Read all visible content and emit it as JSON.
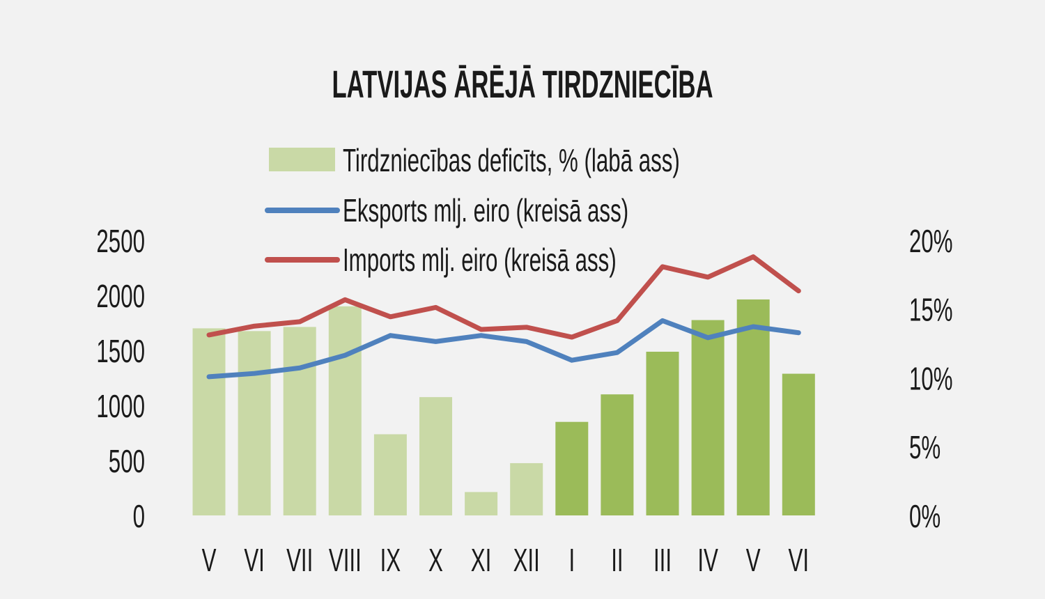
{
  "chart_data": {
    "type": "bar+line",
    "title": "LATVIJAS ĀRĒJĀ TIRDZNIECĪBA",
    "categories": [
      "V",
      "VI",
      "VII",
      "VIII",
      "IX",
      "X",
      "XI",
      "XII",
      "I",
      "II",
      "III",
      "IV",
      "V",
      "VI"
    ],
    "left_axis": {
      "ylim": [
        0,
        2500
      ],
      "ticks": [
        "0",
        "500",
        "1000",
        "1500",
        "2000",
        "2500"
      ],
      "tick_values": [
        0,
        500,
        1000,
        1500,
        2000,
        2500
      ]
    },
    "right_axis": {
      "ylim": [
        0,
        20
      ],
      "ticks": [
        "0%",
        "5%",
        "10%",
        "15%",
        "20%"
      ],
      "tick_values": [
        0,
        5,
        10,
        15,
        20
      ]
    },
    "legend_position": "top-center",
    "series": [
      {
        "name": "Tirdzniecības deficīts, % (labā ass)",
        "type": "bar",
        "axis": "right",
        "values": [
          13.6,
          13.4,
          13.7,
          15.2,
          5.9,
          8.6,
          1.7,
          3.8,
          6.8,
          8.8,
          11.9,
          14.2,
          15.7,
          10.3
        ],
        "color_old": "#c9d9a6",
        "color_new": "#9bbb59",
        "new_from_index": 8
      },
      {
        "name": "Eksports mlj. eiro (kreisā ass)",
        "type": "line",
        "axis": "left",
        "values": [
          1260,
          1290,
          1340,
          1455,
          1635,
          1580,
          1635,
          1580,
          1410,
          1480,
          1770,
          1615,
          1715,
          1660
        ],
        "color": "#4f81bd"
      },
      {
        "name": "Imports mlj. eiro (kreisā ass)",
        "type": "line",
        "axis": "left",
        "values": [
          1640,
          1720,
          1760,
          1960,
          1805,
          1890,
          1690,
          1710,
          1620,
          1770,
          2260,
          2165,
          2350,
          2040
        ],
        "color": "#c0504d"
      }
    ]
  }
}
